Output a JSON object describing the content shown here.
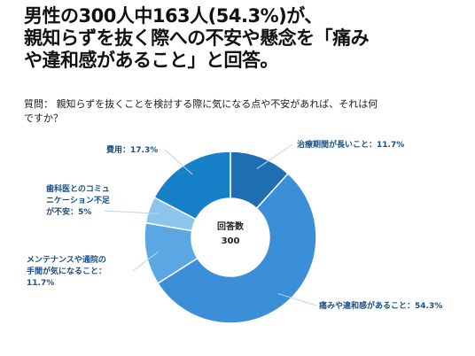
{
  "headline": {
    "line1": "男性の300人中163人(54.3%)が、",
    "line2": "親知らずを抜く際への不安や懸念を「痛み",
    "line3": "や違和感があること」と回答。"
  },
  "question": {
    "line1": "質問： 親知らずを抜くことを検討する際に気になる点や不安があれば、それは何",
    "line2": "ですか？"
  },
  "chart_data": {
    "type": "pie",
    "donut": true,
    "center_label": "回答数",
    "center_value": "300",
    "slices": [
      {
        "label": "治療期間が長いこと",
        "value": 11.7,
        "color": "#1f6db3"
      },
      {
        "label": "痛みや違和感があること",
        "value": 54.3,
        "color": "#3a8fd8"
      },
      {
        "label": "メンテナンスや通院の手間が気になること",
        "value": 11.7,
        "color": "#5aa7e4"
      },
      {
        "label": "歯科医とのコミュニケーション不足が不安",
        "value": 5,
        "color": "#8cc4ee"
      },
      {
        "label": "費用",
        "value": 17.3,
        "color": "#1680c9"
      }
    ],
    "label_texts": [
      [
        "治療期間が長いこと：11.7%"
      ],
      [
        "痛みや違和感があること：54.3%"
      ],
      [
        "メンテナンスや通院の",
        "手間が気になること：",
        "11.7%"
      ],
      [
        "歯科医とのコミュ",
        "ニケーション不足",
        "が不安：5%"
      ],
      [
        "費用：17.3%"
      ]
    ]
  }
}
